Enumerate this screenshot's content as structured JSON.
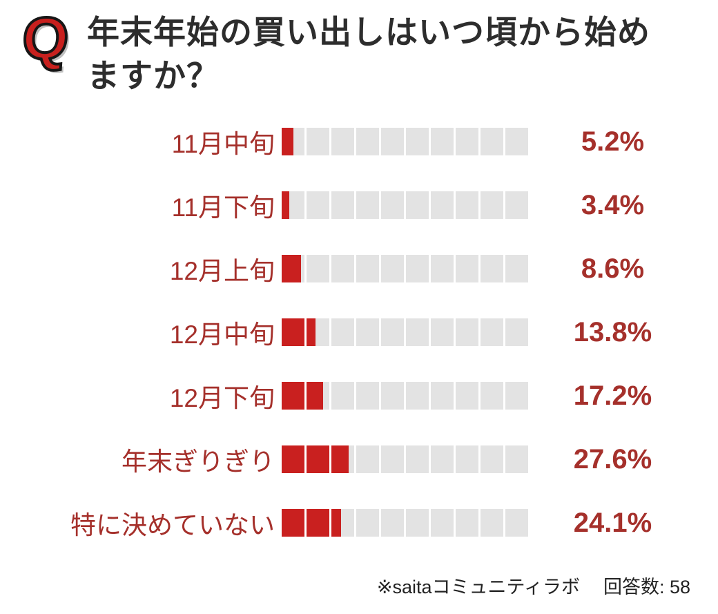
{
  "header": {
    "badge": "Q",
    "title": "年末年始の買い出しはいつ頃から始めますか？"
  },
  "chart_data": {
    "type": "bar",
    "orientation": "horizontal",
    "segmented": true,
    "segments_per_bar": 10,
    "segment_value_percent": 10,
    "categories": [
      "11月中旬",
      "11月下旬",
      "12月上旬",
      "12月中旬",
      "12月下旬",
      "年末ぎりぎり",
      "特に決めていない"
    ],
    "values": [
      5.2,
      3.4,
      8.6,
      13.8,
      17.2,
      27.6,
      24.1
    ],
    "value_labels": [
      "5.2%",
      "3.4%",
      "8.6%",
      "13.8%",
      "17.2%",
      "27.6%",
      "24.1%"
    ],
    "unit": "%",
    "xlim": [
      0,
      100
    ],
    "colors": {
      "bar_fill": "#c9201f",
      "bar_track": "#e3e3e3",
      "category_text": "#a5302b",
      "value_text": "#a5302b",
      "title_text": "#2d2d2d",
      "badge_red": "#c8201e"
    }
  },
  "footer": {
    "source": "※saitaコミュニティラボ",
    "responses": "回答数: 58"
  }
}
